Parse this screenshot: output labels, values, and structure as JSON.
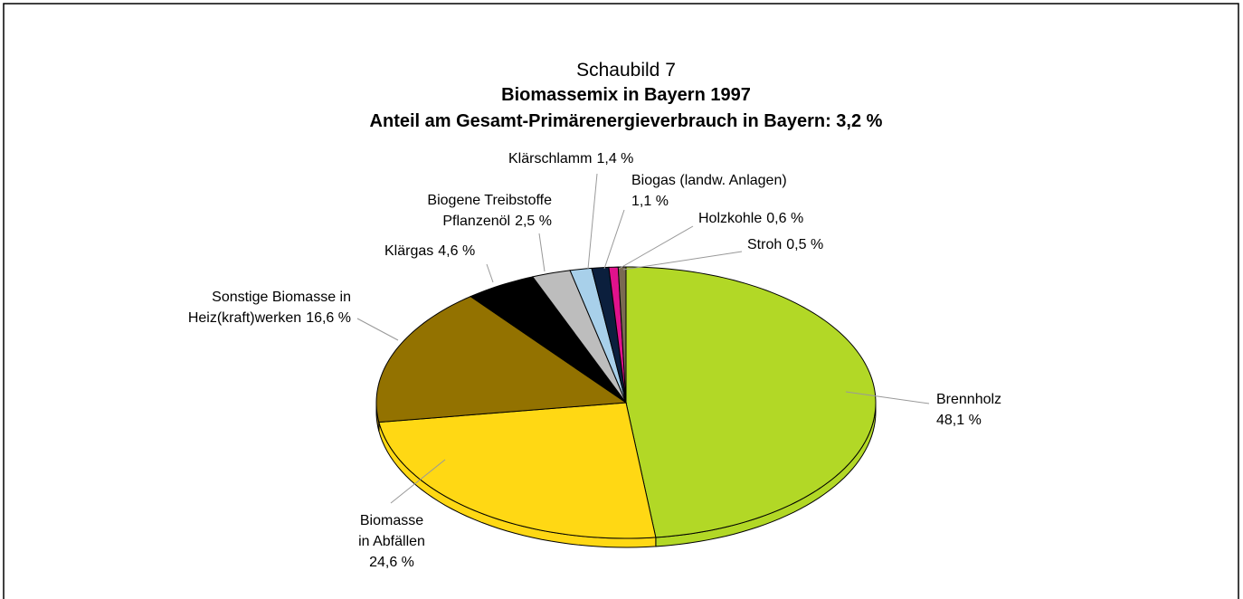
{
  "chart_data": {
    "type": "pie",
    "title": "Schaubild 7",
    "subtitle": "Biomassemix in Bayern 1997",
    "subtitle2": "Anteil am Gesamt-Primärenergieverbrauch in Bayern: 3,2 %",
    "categories": [
      "Brennholz",
      "Biomasse\nin Abfällen",
      "Sonstige Biomasse in\nHeiz(kraft)werken",
      "Klärgas",
      "Biogene Treibstoffe\nPflanzenöl",
      "Klärschlamm",
      "Biogas (landw. Anlagen)",
      "Holzkohle",
      "Stroh"
    ],
    "values": [
      48.1,
      24.6,
      16.6,
      4.6,
      2.5,
      1.4,
      1.1,
      0.6,
      0.5
    ],
    "value_labels": [
      "48,1 %",
      "24,6 %",
      "16,6 %",
      "4,6 %",
      "2,5 %",
      "1,4 %",
      "1,1 %",
      "0,6 %",
      "0,5 %"
    ],
    "colors": [
      "#b2d826",
      "#ffd814",
      "#937200",
      "#000000",
      "#bdbdbd",
      "#a8d0ea",
      "#0b1f3d",
      "#e0128c",
      "#7a6a52"
    ]
  }
}
